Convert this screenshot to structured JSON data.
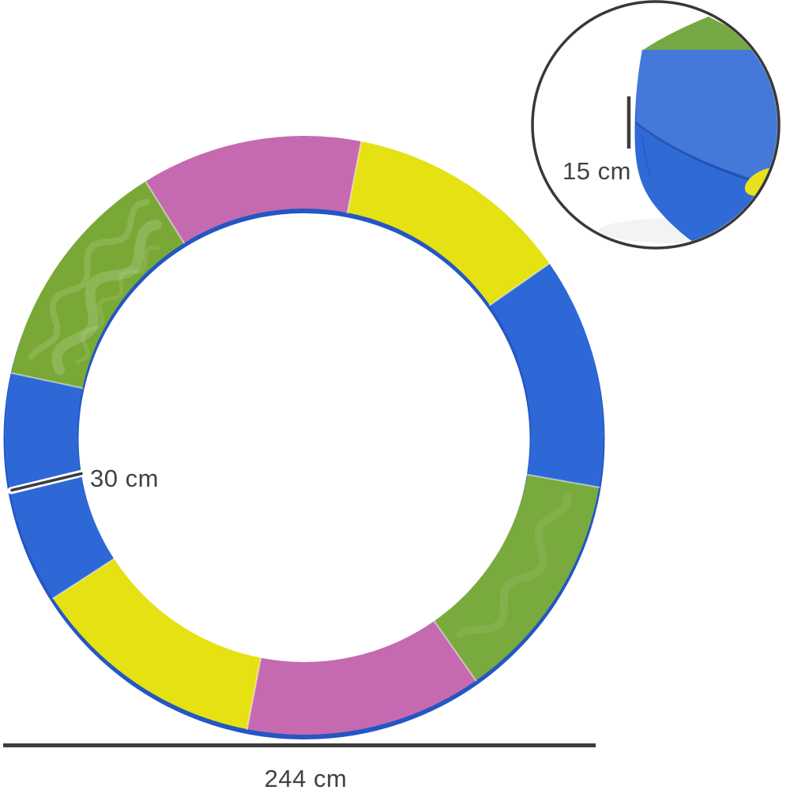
{
  "image": {
    "background": "#ffffff",
    "description_labels": []
  },
  "annotations": {
    "pad_width_label": "30 cm",
    "diameter_label": "244 cm",
    "thickness_label": "15 cm",
    "line_color": "#3d3d3d",
    "text_color": "#424242"
  },
  "ring": {
    "segment_colors": {
      "pink": "#c56ab1",
      "yellow": "#e5e112",
      "blue": "#2e68d6",
      "green": "#79aa3e",
      "green_textured": "#7aa836",
      "underside_blue": "#2456c4",
      "seam": "rgba(255,255,255,0.5)"
    },
    "segments": [
      {
        "name": "pink-top",
        "color": "pink",
        "start_deg": 328,
        "end_deg": 371
      },
      {
        "name": "yellow-top-right",
        "color": "yellow",
        "start_deg": 11,
        "end_deg": 55
      },
      {
        "name": "blue-right",
        "color": "blue",
        "start_deg": 55,
        "end_deg": 100
      },
      {
        "name": "green-bottom-right",
        "color": "green",
        "start_deg": 100,
        "end_deg": 145
      },
      {
        "name": "pink-bottom",
        "color": "pink",
        "start_deg": 145,
        "end_deg": 191
      },
      {
        "name": "yellow-bottom-left",
        "color": "yellow",
        "start_deg": 191,
        "end_deg": 237
      },
      {
        "name": "blue-left",
        "color": "blue",
        "start_deg": 237,
        "end_deg": 282
      },
      {
        "name": "green-top-left",
        "color": "green_textured",
        "start_deg": 282,
        "end_deg": 328
      }
    ]
  },
  "inset": {
    "outline_color": "#383838",
    "pad_top_color": "#2f6ad6",
    "pad_green_color": "#76a844",
    "pad_yellow_color": "#e8e11c"
  }
}
